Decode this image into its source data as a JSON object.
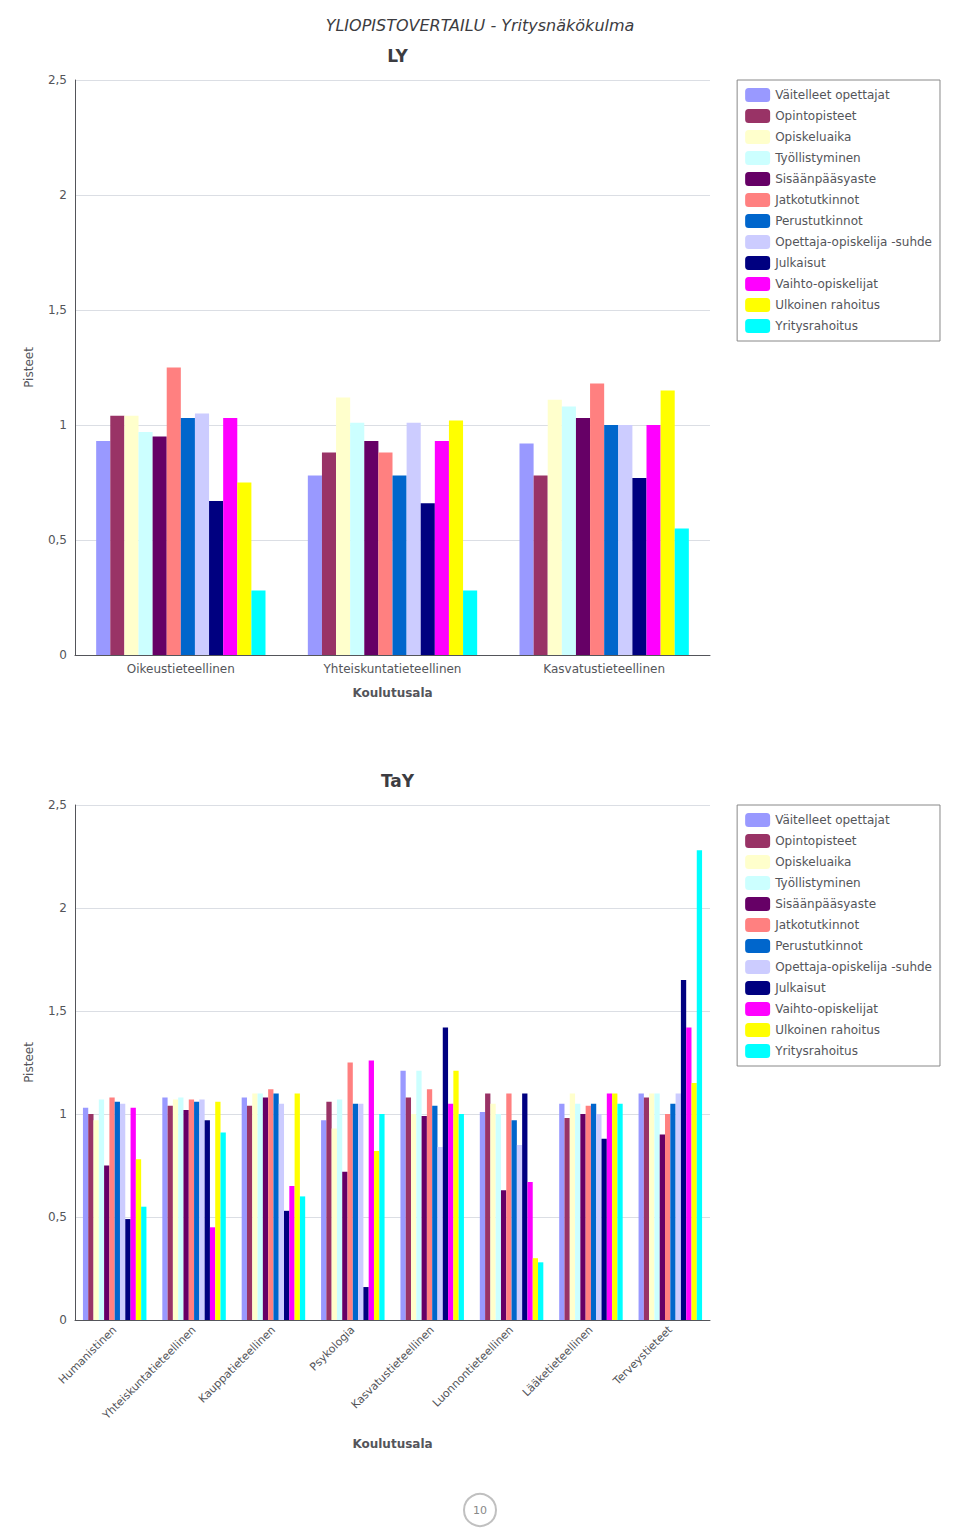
{
  "title": "YLIOPISTOVERTAILU - Yritysnäkökulma",
  "annotations": [
    "10"
  ],
  "chart_data": [
    {
      "type": "bar",
      "title": "LY",
      "xlabel": "Koulutusala",
      "ylabel": "Pisteet",
      "categories": [
        "Oikeustieteellinen",
        "Yhteiskuntatieteellinen",
        "Kasvatustieteellinen"
      ],
      "series": [
        {
          "name": "Väitelleet opettajat",
          "color": "#9999ff",
          "values": [
            0.93,
            0.78,
            0.92
          ]
        },
        {
          "name": "Opintopisteet",
          "color": "#993366",
          "values": [
            1.04,
            0.88,
            0.78
          ]
        },
        {
          "name": "Opiskeluaika",
          "color": "#ffffcc",
          "values": [
            1.04,
            1.12,
            1.11
          ]
        },
        {
          "name": "Työllistyminen",
          "color": "#ccffff",
          "values": [
            0.97,
            1.01,
            1.08
          ]
        },
        {
          "name": "Sisäänpääsyaste",
          "color": "#660066",
          "values": [
            0.95,
            0.93,
            1.03
          ]
        },
        {
          "name": "Jatkotutkinnot",
          "color": "#ff8080",
          "values": [
            1.25,
            0.88,
            1.18
          ]
        },
        {
          "name": "Perustutkinnot",
          "color": "#0066cc",
          "values": [
            1.03,
            0.78,
            1.0
          ]
        },
        {
          "name": "Opettaja-opiskelija -suhde",
          "color": "#ccccff",
          "values": [
            1.05,
            1.01,
            1.0
          ]
        },
        {
          "name": "Julkaisut",
          "color": "#000080",
          "values": [
            0.67,
            0.66,
            0.77
          ]
        },
        {
          "name": "Vaihto-opiskelijat",
          "color": "#ff00ff",
          "values": [
            1.03,
            0.93,
            1.0
          ]
        },
        {
          "name": "Ulkoinen rahoitus",
          "color": "#ffff00",
          "values": [
            0.75,
            1.02,
            1.15
          ]
        },
        {
          "name": "Yritysrahoitus",
          "color": "#00ffff",
          "values": [
            0.28,
            0.28,
            0.55
          ]
        }
      ],
      "ylim": [
        0,
        2.5
      ],
      "yticks": [
        0,
        {
          "value": 0.5,
          "label": "0,5"
        },
        1,
        {
          "value": 1.5,
          "label": "1,5"
        },
        2,
        {
          "value": 2.5,
          "label": "2,5"
        }
      ],
      "grid": true,
      "legend": "right"
    },
    {
      "type": "bar",
      "title": "TaY",
      "xlabel": "Koulutusala",
      "ylabel": "Pisteet",
      "categories": [
        "Humanistinen",
        "Yhteiskuntatieteellinen",
        "Kauppatieteellinen",
        "Psykologia",
        "Kasvatustieteellinen",
        "Luonnontieteellinen",
        "Lääketieteellinen",
        "Terveystieteet"
      ],
      "series": [
        {
          "name": "Väitelleet opettajat",
          "color": "#9999ff",
          "values": [
            1.03,
            1.08,
            1.08,
            0.97,
            1.21,
            1.01,
            1.05,
            1.1
          ]
        },
        {
          "name": "Opintopisteet",
          "color": "#993366",
          "values": [
            1.0,
            1.04,
            1.04,
            1.06,
            1.08,
            1.1,
            0.98,
            1.08
          ]
        },
        {
          "name": "Opiskeluaika",
          "color": "#ffffcc",
          "values": [
            0.97,
            1.07,
            1.1,
            0.93,
            1.0,
            1.05,
            1.1,
            1.1
          ]
        },
        {
          "name": "Työllistyminen",
          "color": "#ccffff",
          "values": [
            1.07,
            1.08,
            1.1,
            1.07,
            1.21,
            1.0,
            1.05,
            1.1
          ]
        },
        {
          "name": "Sisäänpääsyaste",
          "color": "#660066",
          "values": [
            0.75,
            1.02,
            1.08,
            0.72,
            0.99,
            0.63,
            1.0,
            0.9
          ]
        },
        {
          "name": "Jatkotutkinnot",
          "color": "#ff8080",
          "values": [
            1.08,
            1.07,
            1.12,
            1.25,
            1.12,
            1.1,
            1.04,
            1.0
          ]
        },
        {
          "name": "Perustutkinnot",
          "color": "#0066cc",
          "values": [
            1.06,
            1.06,
            1.1,
            1.05,
            1.04,
            0.97,
            1.05,
            1.05
          ]
        },
        {
          "name": "Opettaja-opiskelija -suhde",
          "color": "#ccccff",
          "values": [
            1.05,
            1.07,
            1.05,
            1.05,
            0.84,
            0.85,
            1.0,
            1.1
          ]
        },
        {
          "name": "Julkaisut",
          "color": "#000080",
          "values": [
            0.49,
            0.97,
            0.53,
            0.16,
            1.42,
            1.1,
            0.88,
            1.65
          ]
        },
        {
          "name": "Vaihto-opiskelijat",
          "color": "#ff00ff",
          "values": [
            1.03,
            0.45,
            0.65,
            1.26,
            1.05,
            0.67,
            1.1,
            1.42
          ]
        },
        {
          "name": "Ulkoinen rahoitus",
          "color": "#ffff00",
          "values": [
            0.78,
            1.06,
            1.1,
            0.82,
            1.21,
            0.3,
            1.1,
            1.15
          ]
        },
        {
          "name": "Yritysrahoitus",
          "color": "#00ffff",
          "values": [
            0.55,
            0.91,
            0.6,
            1.0,
            1.0,
            0.28,
            1.05,
            2.28
          ]
        }
      ],
      "ylim": [
        0,
        2.5
      ],
      "yticks": [
        0,
        {
          "value": 0.5,
          "label": "0,5"
        },
        1,
        {
          "value": 1.5,
          "label": "1,5"
        },
        2,
        {
          "value": 2.5,
          "label": "2,5"
        }
      ],
      "grid": true,
      "legend": "right"
    }
  ]
}
